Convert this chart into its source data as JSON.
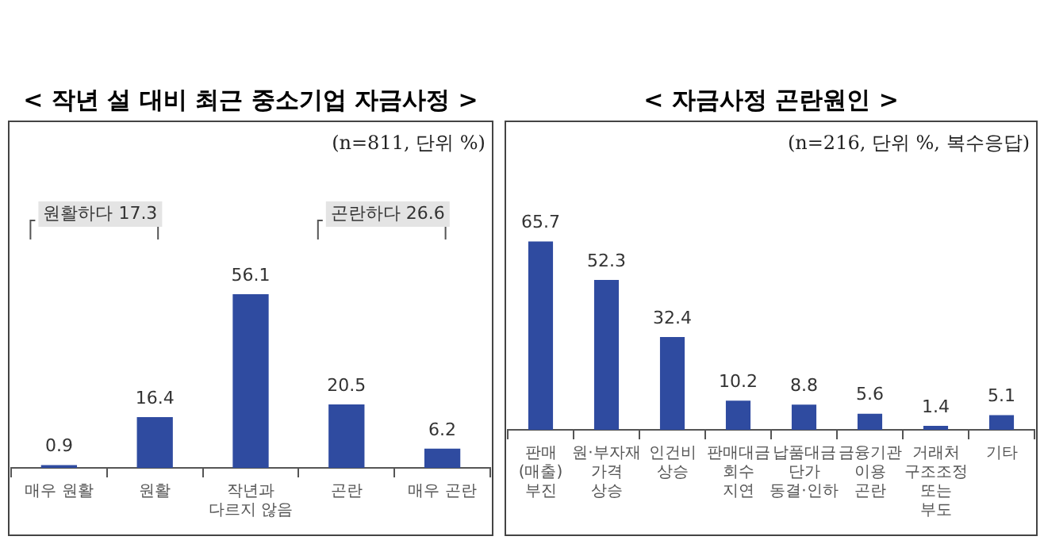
{
  "chart_data": [
    {
      "type": "bar",
      "title": "< 작년 설 대비 최근 중소기업 자금사정 >",
      "categories": [
        "매우 원활",
        "원활",
        "작년과 다르지 않음",
        "곤란",
        "매우 곤란"
      ],
      "values": [
        0.9,
        16.4,
        56.1,
        20.5,
        6.2
      ],
      "color": "#2f4ba0",
      "data_labels": true,
      "annotations": [
        "(n=811, 단위 %)",
        "원활하다 17.3",
        "곤란하다 26.6"
      ]
    },
    {
      "type": "bar",
      "title": "< 자금사정 곤란원인 >",
      "categories": [
        "판매(매출) 부진",
        "원·부자재 가격 상승",
        "인건비 상승",
        "판매대금 회수 지연",
        "납품대금 단가 동결·인하",
        "금융기관 이용 곤란",
        "거래처 구조조정 또는 부도",
        "기타"
      ],
      "values": [
        65.7,
        52.3,
        32.4,
        10.2,
        8.8,
        5.6,
        1.4,
        5.1
      ],
      "color": "#2f4ba0",
      "data_labels": true,
      "annotations": [
        "(n=216, 단위 %, 복수응답)"
      ]
    }
  ]
}
